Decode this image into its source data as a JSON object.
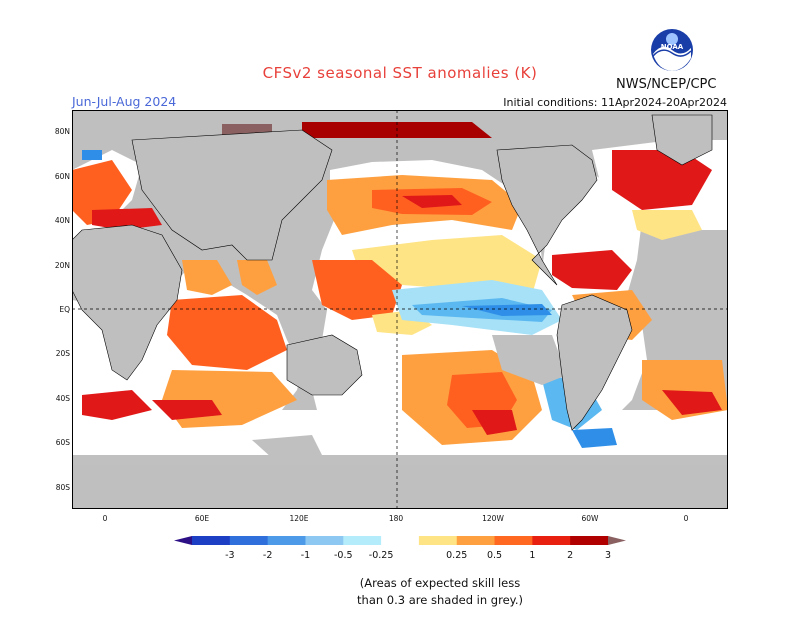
{
  "header": {
    "title": "CFSv2 seasonal SST anomalies (K)",
    "season": "Jun-Jul-Aug 2024",
    "initial_conditions": "Initial conditions: 11Apr2024-20Apr2024",
    "agency": "NWS/NCEP/CPC",
    "logo_text": "NOAA"
  },
  "map": {
    "lat_labels": [
      "80N",
      "60N",
      "40N",
      "20N",
      "EQ",
      "20S",
      "40S",
      "60S",
      "80S"
    ],
    "lon_labels": [
      "0",
      "60E",
      "120E",
      "180",
      "120W",
      "60W",
      "0"
    ],
    "colors": {
      "land": "#bfbfbf",
      "ocean_neutral": "#ffffff",
      "grey_low_skill": "#c0c0c0",
      "warm_0_25": "#ffe486",
      "warm_0_5": "#ffa040",
      "warm_1": "#ff6020",
      "warm_2": "#e01818",
      "warm_3": "#a80000",
      "cool_0_25": "#a6e1f7",
      "cool_0_5": "#5cb8f0",
      "cool_1": "#2f8fe8",
      "cool_2": "#1e5cd0"
    }
  },
  "colorbar": {
    "labels": [
      "-3",
      "-2",
      "-1",
      "-0.5",
      "-0.25",
      "0.25",
      "0.5",
      "1",
      "2",
      "3"
    ],
    "colors": [
      "#2d0f86",
      "#1d3fc4",
      "#2e6fdc",
      "#4c9ae8",
      "#8cc8f2",
      "#b4ecfb",
      "#ffffff",
      "#ffe486",
      "#ffa040",
      "#ff6820",
      "#e82010",
      "#b00000",
      "#8a6060"
    ]
  },
  "note": {
    "line1": "(Areas of expected skill less",
    "line2": "than 0.3 are shaded in grey.)"
  }
}
